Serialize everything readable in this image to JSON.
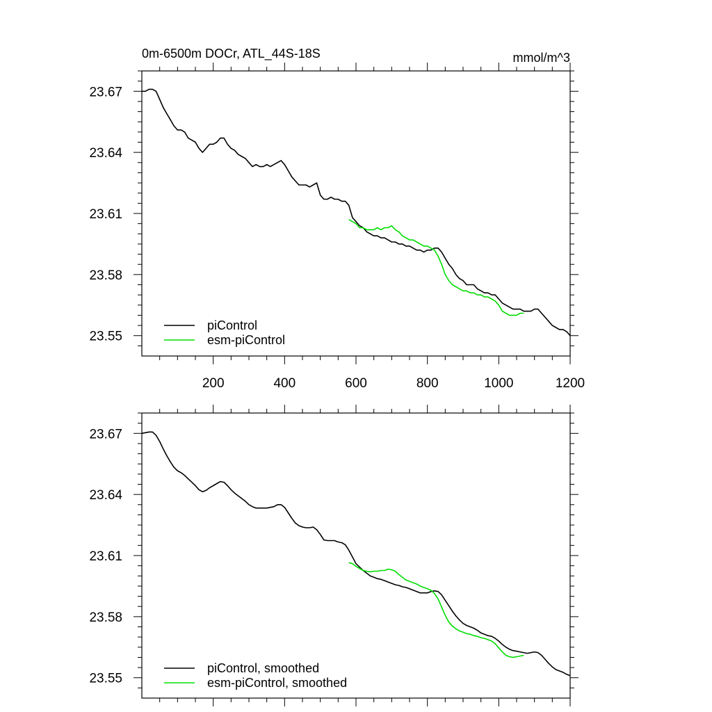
{
  "chart_data": [
    {
      "type": "line",
      "title_left": "0m-6500m DOCr, ATL_44S-18S",
      "title_right": "mmol/m^3",
      "xlim": [
        0,
        1200
      ],
      "ylim": [
        23.54,
        23.68
      ],
      "xticks": [
        200,
        400,
        600,
        800,
        1000,
        1200
      ],
      "xtick_labels": [
        "200",
        "400",
        "600",
        "800",
        "1000",
        "1200"
      ],
      "yticks": [
        23.67,
        23.64,
        23.61,
        23.58,
        23.55
      ],
      "ytick_labels": [
        "23.67",
        "23.64",
        "23.61",
        "23.58",
        "23.55"
      ],
      "legend": [
        "piControl",
        "esm-piControl"
      ],
      "series": [
        {
          "name": "piControl",
          "color": "#000000",
          "x": [
            0,
            10,
            20,
            30,
            40,
            50,
            60,
            70,
            80,
            90,
            100,
            110,
            120,
            130,
            140,
            150,
            160,
            170,
            180,
            190,
            200,
            210,
            220,
            230,
            240,
            250,
            260,
            270,
            280,
            290,
            300,
            310,
            320,
            330,
            340,
            350,
            360,
            370,
            380,
            390,
            400,
            410,
            420,
            430,
            440,
            450,
            460,
            470,
            480,
            490,
            500,
            510,
            520,
            530,
            540,
            550,
            560,
            570,
            580,
            590,
            600,
            610,
            620,
            630,
            640,
            650,
            660,
            670,
            680,
            690,
            700,
            710,
            720,
            730,
            740,
            750,
            760,
            770,
            780,
            790,
            800,
            810,
            820,
            830,
            840,
            850,
            860,
            870,
            880,
            890,
            900,
            910,
            920,
            930,
            940,
            950,
            960,
            970,
            980,
            990,
            1000,
            1010,
            1020,
            1030,
            1040,
            1050,
            1060,
            1070,
            1080,
            1090,
            1100,
            1110,
            1120,
            1130,
            1140,
            1150,
            1160,
            1170,
            1180,
            1190,
            1200
          ],
          "y": [
            23.67,
            23.67,
            23.671,
            23.671,
            23.67,
            23.666,
            23.662,
            23.659,
            23.656,
            23.653,
            23.651,
            23.651,
            23.65,
            23.647,
            23.646,
            23.645,
            23.642,
            23.64,
            23.642,
            23.644,
            23.644,
            23.645,
            23.647,
            23.647,
            23.644,
            23.642,
            23.641,
            23.639,
            23.638,
            23.637,
            23.635,
            23.633,
            23.634,
            23.633,
            23.633,
            23.634,
            23.633,
            23.634,
            23.635,
            23.636,
            23.634,
            23.631,
            23.628,
            23.626,
            23.624,
            23.624,
            23.624,
            23.623,
            23.624,
            23.625,
            23.619,
            23.617,
            23.617,
            23.618,
            23.617,
            23.617,
            23.616,
            23.616,
            23.614,
            23.608,
            23.606,
            23.604,
            23.603,
            23.601,
            23.6,
            23.599,
            23.599,
            23.598,
            23.598,
            23.597,
            23.596,
            23.596,
            23.595,
            23.595,
            23.594,
            23.594,
            23.593,
            23.592,
            23.592,
            23.591,
            23.592,
            23.592,
            23.593,
            23.593,
            23.591,
            23.588,
            23.585,
            23.583,
            23.58,
            23.578,
            23.577,
            23.575,
            23.575,
            23.575,
            23.573,
            23.572,
            23.571,
            23.571,
            23.57,
            23.57,
            23.568,
            23.566,
            23.565,
            23.564,
            23.563,
            23.563,
            23.563,
            23.562,
            23.562,
            23.562,
            23.563,
            23.563,
            23.561,
            23.559,
            23.557,
            23.555,
            23.554,
            23.553,
            23.553,
            23.552,
            23.55
          ]
        },
        {
          "name": "esm-piControl",
          "color": "#00dd00",
          "x": [
            580,
            590,
            600,
            610,
            620,
            630,
            640,
            650,
            660,
            670,
            680,
            690,
            700,
            710,
            720,
            730,
            740,
            750,
            760,
            770,
            780,
            790,
            800,
            810,
            820,
            830,
            840,
            850,
            860,
            870,
            880,
            890,
            900,
            910,
            920,
            930,
            940,
            950,
            960,
            970,
            980,
            990,
            1000,
            1010,
            1020,
            1030,
            1040,
            1050,
            1060,
            1070
          ],
          "y": [
            23.607,
            23.606,
            23.605,
            23.603,
            23.603,
            23.602,
            23.602,
            23.602,
            23.603,
            23.602,
            23.603,
            23.603,
            23.604,
            23.602,
            23.601,
            23.599,
            23.598,
            23.597,
            23.597,
            23.596,
            23.595,
            23.594,
            23.594,
            23.593,
            23.592,
            23.589,
            23.585,
            23.58,
            23.577,
            23.575,
            23.574,
            23.573,
            23.572,
            23.572,
            23.571,
            23.571,
            23.57,
            23.57,
            23.569,
            23.569,
            23.568,
            23.567,
            23.565,
            23.562,
            23.561,
            23.56,
            23.56,
            23.56,
            23.561,
            23.561
          ]
        }
      ]
    },
    {
      "type": "line",
      "xlim": [
        0,
        1200
      ],
      "ylim": [
        23.54,
        23.68
      ],
      "yticks": [
        23.67,
        23.64,
        23.61,
        23.58,
        23.55
      ],
      "ytick_labels": [
        "23.67",
        "23.64",
        "23.61",
        "23.58",
        "23.55"
      ],
      "xticks": [
        200,
        400,
        600,
        800,
        1000,
        1200
      ],
      "legend": [
        "piControl, smoothed",
        "esm-piControl, smoothed"
      ],
      "series": [
        {
          "name": "piControl, smoothed",
          "color": "#000000",
          "smoothed_from": 0
        },
        {
          "name": "esm-piControl, smoothed",
          "color": "#00dd00",
          "smoothed_from": 1
        }
      ]
    }
  ]
}
